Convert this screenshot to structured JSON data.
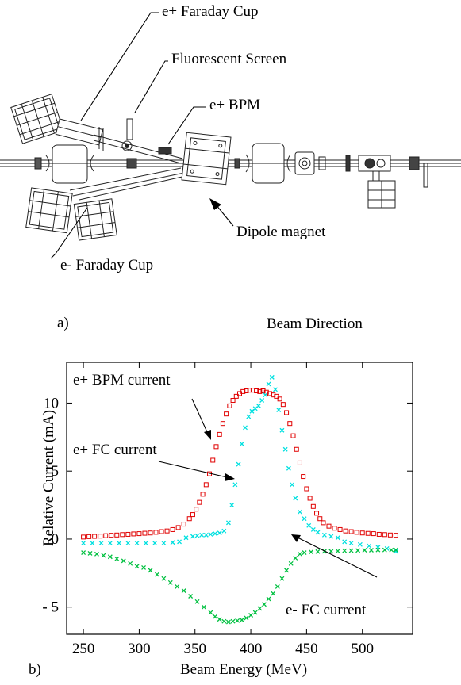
{
  "panel_a": {
    "label": "a)",
    "beam_direction_label": "Beam Direction",
    "callouts": {
      "pos_faraday_cup": "e+ Faraday Cup",
      "fluorescent_screen": "Fluorescent Screen",
      "pos_bpm": "e+ BPM",
      "dipole_magnet": "Dipole magnet",
      "neg_faraday_cup": "e- Faraday Cup"
    }
  },
  "panel_b": {
    "label": "b)",
    "annotations": {
      "bpm": "e+ BPM current",
      "fc_pos": "e+ FC current",
      "fc_neg": "e- FC current"
    }
  },
  "chart_data": {
    "type": "scatter",
    "title": "",
    "xlabel": "Beam Energy (MeV)",
    "ylabel": "Relative Current (mA)",
    "xlim": [
      235,
      545
    ],
    "ylim": [
      -7,
      13
    ],
    "xticks": [
      250,
      300,
      350,
      400,
      450,
      500
    ],
    "yticks": [
      {
        "value": 10,
        "label": "10"
      },
      {
        "value": 5,
        "label": "5"
      },
      {
        "value": 0,
        "label": "0"
      },
      {
        "value": -5,
        "label": "- 5"
      }
    ],
    "grid": false,
    "legend": "none",
    "colors": {
      "bpm": "#e00000",
      "fc_pos": "#00e0e0",
      "fc_neg": "#00c040"
    },
    "series": [
      {
        "key": "bpm",
        "marker": "square",
        "x": [
          250,
          255,
          260,
          265,
          270,
          275,
          280,
          285,
          290,
          295,
          300,
          305,
          310,
          315,
          320,
          325,
          330,
          335,
          340,
          345,
          348,
          351,
          354,
          357,
          360,
          363,
          366,
          369,
          372,
          375,
          378,
          381,
          384,
          387,
          390,
          393,
          396,
          399,
          402,
          405,
          408,
          411,
          414,
          417,
          420,
          423,
          426,
          429,
          432,
          435,
          438,
          441,
          444,
          447,
          450,
          453,
          456,
          459,
          462,
          465,
          470,
          475,
          480,
          485,
          490,
          495,
          500,
          505,
          510,
          515,
          520,
          525,
          530
        ],
        "y": [
          0.15,
          0.18,
          0.2,
          0.22,
          0.25,
          0.28,
          0.3,
          0.33,
          0.35,
          0.38,
          0.4,
          0.43,
          0.45,
          0.5,
          0.55,
          0.6,
          0.7,
          0.85,
          1.1,
          1.5,
          1.8,
          2.2,
          2.7,
          3.3,
          4.0,
          4.8,
          5.8,
          6.8,
          7.7,
          8.5,
          9.2,
          9.8,
          10.2,
          10.5,
          10.7,
          10.85,
          10.9,
          10.95,
          10.95,
          10.9,
          10.85,
          10.9,
          10.8,
          10.7,
          10.6,
          10.5,
          10.3,
          9.9,
          9.3,
          8.5,
          7.6,
          6.6,
          5.6,
          4.6,
          3.7,
          3.0,
          2.4,
          1.9,
          1.5,
          1.2,
          0.95,
          0.8,
          0.7,
          0.6,
          0.55,
          0.5,
          0.45,
          0.42,
          0.4,
          0.35,
          0.33,
          0.3,
          0.28
        ]
      },
      {
        "key": "fc_pos",
        "marker": "x",
        "x": [
          250,
          258,
          266,
          274,
          282,
          290,
          298,
          306,
          314,
          322,
          330,
          336,
          342,
          348,
          352,
          356,
          360,
          364,
          368,
          372,
          376,
          380,
          383,
          386,
          389,
          392,
          395,
          398,
          401,
          404,
          407,
          410,
          413,
          416,
          419,
          422,
          425,
          428,
          431,
          434,
          437,
          440,
          444,
          448,
          452,
          456,
          460,
          466,
          472,
          478,
          484,
          490,
          498,
          506,
          514,
          522,
          530
        ],
        "y": [
          -0.3,
          -0.3,
          -0.3,
          -0.3,
          -0.3,
          -0.3,
          -0.3,
          -0.3,
          -0.3,
          -0.3,
          -0.25,
          -0.2,
          0.1,
          0.2,
          0.25,
          0.3,
          0.3,
          0.35,
          0.4,
          0.45,
          0.6,
          1.2,
          2.5,
          4.0,
          5.5,
          7.0,
          8.2,
          9.0,
          9.4,
          9.6,
          9.8,
          10.2,
          10.6,
          11.4,
          11.9,
          11.0,
          9.5,
          8.0,
          6.6,
          5.2,
          4.0,
          3.0,
          2.0,
          1.5,
          1.0,
          0.7,
          0.5,
          0.3,
          0.2,
          0.1,
          -0.2,
          -0.3,
          -0.4,
          -0.5,
          -0.6,
          -0.7,
          -0.9
        ]
      },
      {
        "key": "fc_neg",
        "marker": "x",
        "x": [
          250,
          256,
          262,
          268,
          274,
          280,
          286,
          292,
          298,
          304,
          310,
          316,
          322,
          328,
          334,
          340,
          346,
          352,
          358,
          364,
          368,
          372,
          376,
          380,
          384,
          388,
          392,
          396,
          400,
          404,
          408,
          412,
          416,
          420,
          424,
          428,
          432,
          436,
          440,
          444,
          448,
          454,
          460,
          466,
          472,
          478,
          484,
          490,
          496,
          502,
          508,
          514,
          520,
          526,
          530
        ],
        "y": [
          -1.0,
          -1.05,
          -1.1,
          -1.2,
          -1.3,
          -1.45,
          -1.6,
          -1.8,
          -2.0,
          -2.1,
          -2.3,
          -2.6,
          -2.9,
          -3.2,
          -3.5,
          -3.8,
          -4.2,
          -4.6,
          -5.0,
          -5.4,
          -5.7,
          -5.9,
          -6.05,
          -6.1,
          -6.05,
          -6.0,
          -5.95,
          -5.8,
          -5.6,
          -5.4,
          -5.1,
          -4.8,
          -4.4,
          -4.0,
          -3.5,
          -2.9,
          -2.3,
          -1.8,
          -1.4,
          -1.1,
          -1.0,
          -0.95,
          -0.92,
          -0.9,
          -0.9,
          -0.88,
          -0.86,
          -0.85,
          -0.84,
          -0.82,
          -0.82,
          -0.8,
          -0.8,
          -0.8,
          -0.8
        ]
      }
    ]
  }
}
